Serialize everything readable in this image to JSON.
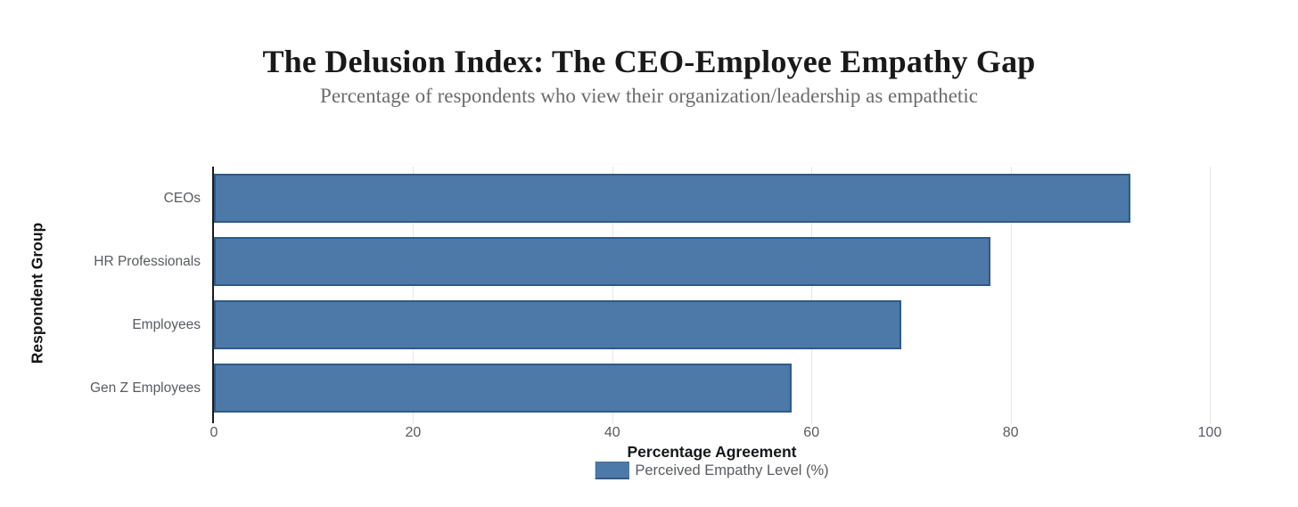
{
  "header": {
    "title": "The Delusion Index: The CEO-Employee Empathy Gap",
    "subtitle": "Percentage of respondents who view their organization/leadership as empathetic"
  },
  "axes": {
    "x_title": "Percentage Agreement",
    "y_title": "Respondent Group"
  },
  "legend": {
    "label": "Perceived Empathy Level (%)",
    "swatch_color": "#4d79a8"
  },
  "chart_data": {
    "type": "bar",
    "orientation": "horizontal",
    "title": "The Delusion Index: The CEO-Employee Empathy Gap",
    "subtitle": "Percentage of respondents who view their organization/leadership as empathetic",
    "categories": [
      "CEOs",
      "HR Professionals",
      "Employees",
      "Gen Z Employees"
    ],
    "series": [
      {
        "name": "Perceived Empathy Level (%)",
        "values": [
          92,
          78,
          69,
          58
        ]
      }
    ],
    "xlabel": "Percentage Agreement",
    "ylabel": "Respondent Group",
    "xlim": [
      0,
      100
    ],
    "x_ticks": [
      0,
      20,
      40,
      60,
      80,
      100
    ],
    "grid": "vertical-only",
    "legend_position": "bottom-center",
    "colors": {
      "bar_fill": "#4d79a8",
      "bar_border": "#2f5a87",
      "gridline": "#e7e7e7",
      "axis_line": "#1a1c1e",
      "title_text": "#191919",
      "subtitle_text": "#6b6b6b",
      "tick_text": "#585b61"
    }
  }
}
